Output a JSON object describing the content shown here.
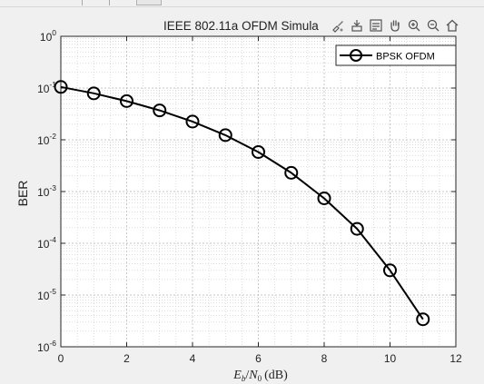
{
  "window": {
    "background": "#f0f0f0"
  },
  "toolbar": {
    "icons": [
      "brush-icon",
      "data-tip-icon",
      "legend-icon",
      "pan-icon",
      "zoom-in-icon",
      "zoom-out-icon",
      "home-icon"
    ]
  },
  "chart_data": {
    "type": "line",
    "title": "IEEE 802.11a OFDM Simula",
    "xlabel_parts": {
      "var1": "E",
      "sub1": "b",
      "slash": "/",
      "var2": "N",
      "sub2": "0",
      "unit": "(dB)"
    },
    "ylabel": "BER",
    "xlim": [
      0,
      12
    ],
    "ylim": [
      1e-06,
      1
    ],
    "yscale": "log",
    "grid": true,
    "minor_grid": true,
    "legend_position": "top-right",
    "x_ticks": [
      "0",
      "2",
      "4",
      "6",
      "8",
      "10",
      "12"
    ],
    "y_ticks": [
      {
        "base": "10",
        "exp": "0"
      },
      {
        "base": "10",
        "exp": "-1"
      },
      {
        "base": "10",
        "exp": "-2"
      },
      {
        "base": "10",
        "exp": "-3"
      },
      {
        "base": "10",
        "exp": "-4"
      },
      {
        "base": "10",
        "exp": "-5"
      },
      {
        "base": "10",
        "exp": "-6"
      }
    ],
    "series": [
      {
        "name": "BPSK OFDM",
        "color": "#000000",
        "marker": "circle",
        "x": [
          0,
          1,
          2,
          3,
          4,
          5,
          6,
          7,
          8,
          9,
          10,
          11
        ],
        "y": [
          0.105,
          0.079,
          0.056,
          0.037,
          0.0225,
          0.0123,
          0.0058,
          0.0023,
          0.00074,
          0.00019,
          3e-05,
          3.4e-06
        ]
      }
    ]
  }
}
